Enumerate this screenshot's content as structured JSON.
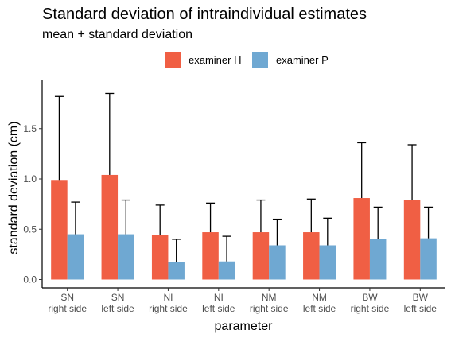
{
  "chart_data": {
    "type": "bar",
    "title": "Standard deviation of intraindividual estimates",
    "subtitle": "mean + standard deviation",
    "xlabel": "parameter",
    "ylabel": "standard deviation (cm)",
    "ylim": [
      -0.08,
      1.9
    ],
    "yticks": [
      "0.0",
      "0.5",
      "1.0",
      "1.5"
    ],
    "ytick_values": [
      0,
      0.5,
      1.0,
      1.5
    ],
    "grid": false,
    "legend_position": "top",
    "categories": [
      [
        "SN",
        "right side"
      ],
      [
        "SN",
        "left side"
      ],
      [
        "NI",
        "right side"
      ],
      [
        "NI",
        "left side"
      ],
      [
        "NM",
        "right side"
      ],
      [
        "NM",
        "left side"
      ],
      [
        "BW",
        "right side"
      ],
      [
        "BW",
        "left side"
      ]
    ],
    "series": [
      {
        "name": "examiner H",
        "color": "#f05f44",
        "values": [
          0.99,
          1.04,
          0.44,
          0.47,
          0.47,
          0.47,
          0.81,
          0.79
        ],
        "upper": [
          1.82,
          1.85,
          0.74,
          0.76,
          0.79,
          0.8,
          1.36,
          1.34
        ]
      },
      {
        "name": "examiner P",
        "color": "#6fa8d2",
        "values": [
          0.45,
          0.45,
          0.17,
          0.18,
          0.34,
          0.34,
          0.4,
          0.41
        ],
        "upper": [
          0.77,
          0.79,
          0.4,
          0.43,
          0.6,
          0.61,
          0.72,
          0.72
        ]
      }
    ]
  }
}
